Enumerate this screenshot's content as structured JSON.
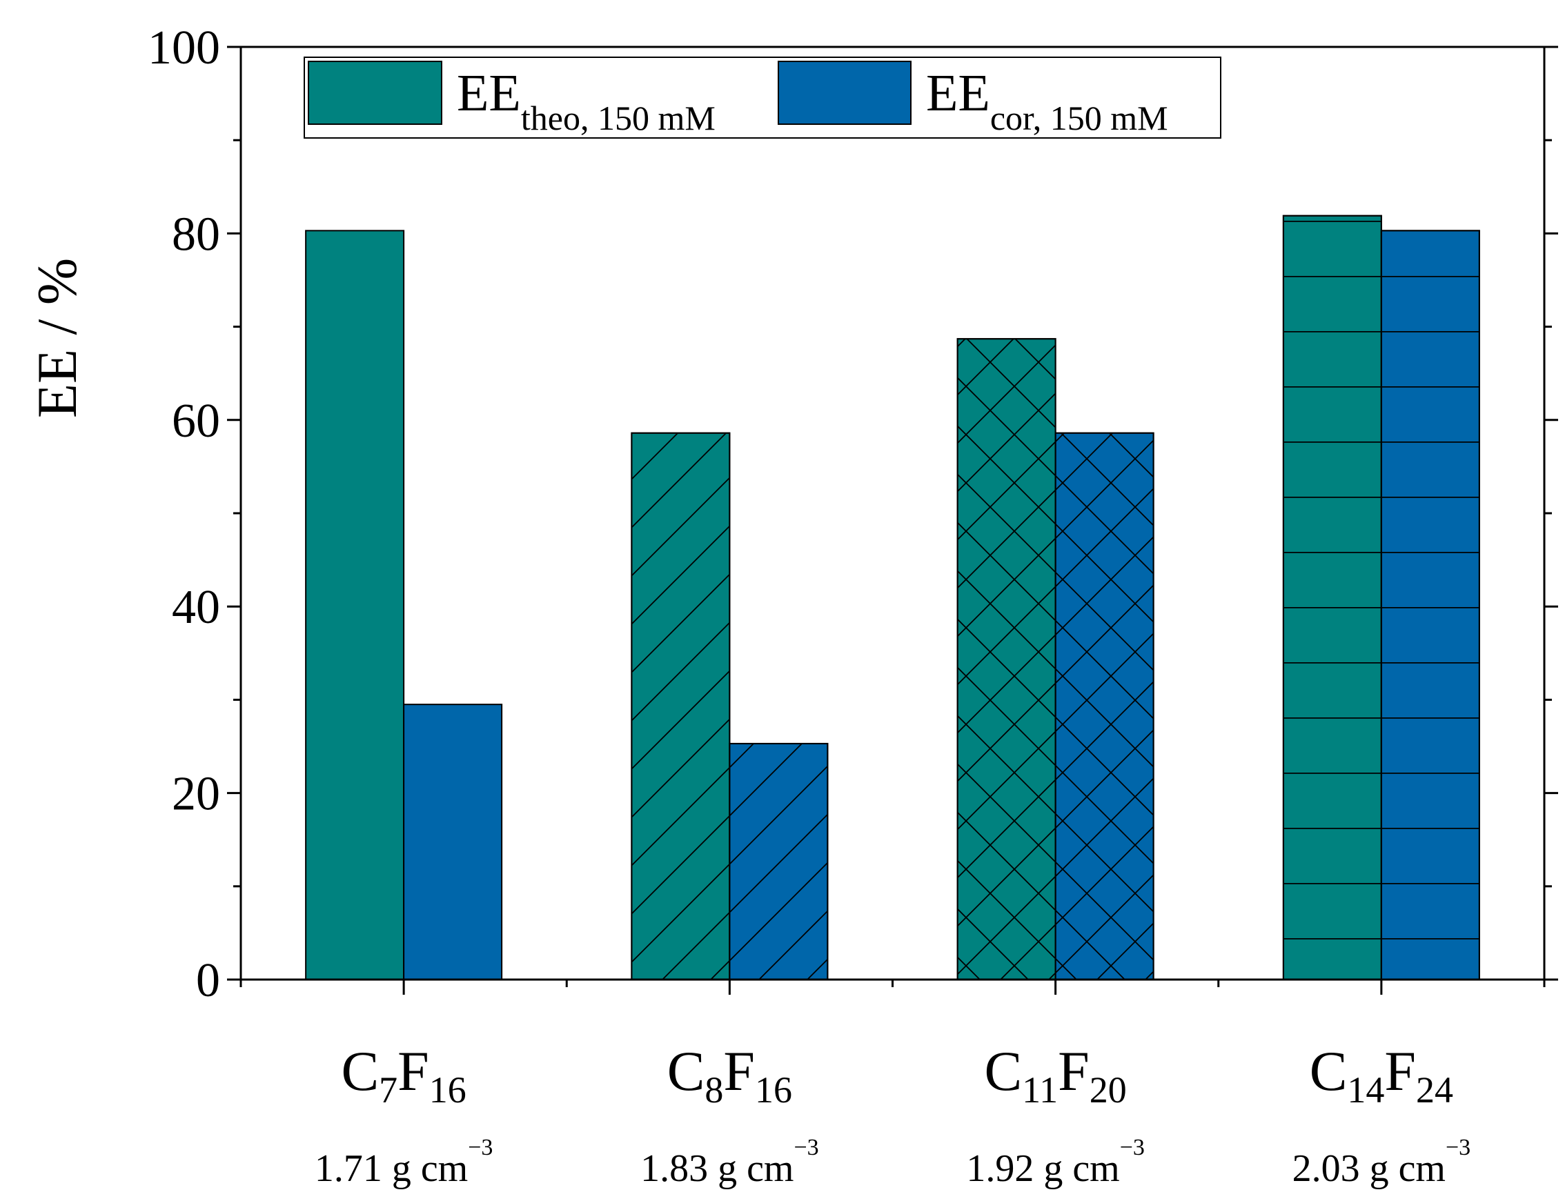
{
  "chart_data": {
    "type": "bar",
    "title": "",
    "xlabel": "",
    "ylabel": "EE / %",
    "ylim": [
      0,
      100
    ],
    "yticks": [
      "0",
      "20",
      "40",
      "60",
      "80",
      "100"
    ],
    "categories": [
      {
        "base": "C",
        "n1": "7",
        "el2": "F",
        "n2": "16",
        "density_value": "1.71 g cm",
        "density_exp": "−3",
        "pattern": "none"
      },
      {
        "base": "C",
        "n1": "8",
        "el2": "F",
        "n2": "16",
        "density_value": "1.83 g cm",
        "density_exp": "−3",
        "pattern": "diag"
      },
      {
        "base": "C",
        "n1": "11",
        "el2": "F",
        "n2": "20",
        "density_value": "1.92 g cm",
        "density_exp": "−3",
        "pattern": "cross"
      },
      {
        "base": "C",
        "n1": "14",
        "el2": "F",
        "n2": "24",
        "density_value": "2.03 g cm",
        "density_exp": "−3",
        "pattern": "horiz"
      }
    ],
    "series": [
      {
        "name": "EE",
        "sub": "theo, 150 mM",
        "color": "#00827F",
        "values": [
          80.3,
          58.6,
          68.7,
          81.9
        ]
      },
      {
        "name": "EE",
        "sub": "cor, 150 mM",
        "color": "#0066AA",
        "values": [
          29.5,
          25.3,
          58.6,
          80.3
        ]
      }
    ],
    "legend_position": "top-left",
    "grid": false
  }
}
